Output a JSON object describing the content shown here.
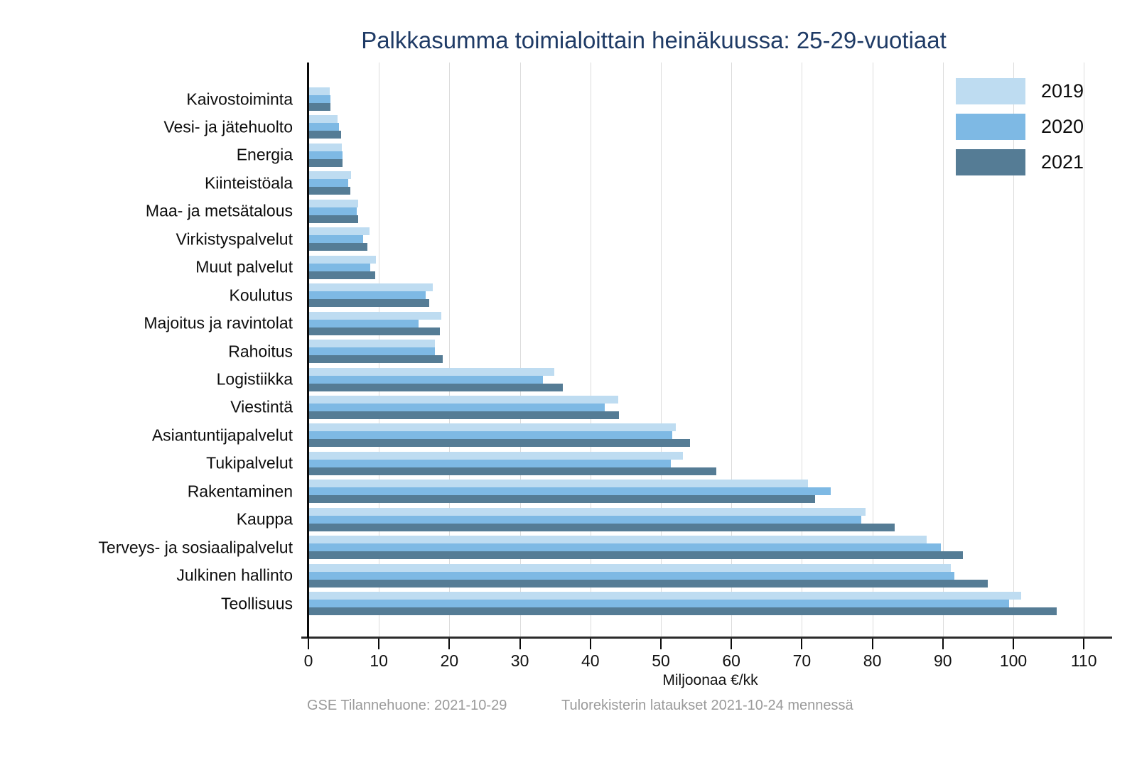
{
  "title": "Palkkasumma toimialoittain heinäkuussa: 25-29-vuotiaat",
  "footer": {
    "source_note": "GSE Tilannehuone: 2021-10-29",
    "update_note": "Tulorekisterin lataukset 2021-10-24 mennessä"
  },
  "colors": {
    "title_text": "#1F3B66",
    "axis": "#0a0a0a",
    "gridline": "#DCDCDC",
    "footer_text": "#9A9A9A",
    "series_2019": "#BEDCF1",
    "series_2020": "#7EB9E4",
    "series_2021": "#557C95"
  },
  "chart_data": {
    "type": "bar",
    "orientation": "horizontal",
    "title": "Palkkasumma toimialoittain heinäkuussa: 25-29-vuotiaat",
    "xlabel": "Miljoonaa €/kk",
    "ylabel": "",
    "xlim": [
      0,
      113
    ],
    "xticks": [
      0,
      10,
      20,
      30,
      40,
      50,
      60,
      70,
      80,
      90,
      100,
      110
    ],
    "grid": true,
    "legend_position": "top-right",
    "categories": [
      "Kaivostoiminta",
      "Vesi- ja jätehuolto",
      "Energia",
      "Kiinteistöala",
      "Maa- ja metsätalous",
      "Virkistyspalvelut",
      "Muut palvelut",
      "Koulutus",
      "Majoitus ja ravintolat",
      "Rahoitus",
      "Logistiikka",
      "Viestintä",
      "Asiantuntijapalvelut",
      "Tukipalvelut",
      "Rakentaminen",
      "Kauppa",
      "Terveys- ja sosiaalipalvelut",
      "Julkinen hallinto",
      "Teollisuus"
    ],
    "series": [
      {
        "name": "2019",
        "color": "#BEDCF1",
        "values": [
          2.9,
          4.0,
          4.6,
          5.9,
          7.0,
          8.6,
          9.5,
          17.5,
          18.7,
          17.8,
          34.8,
          43.9,
          52.0,
          53.0,
          70.8,
          78.9,
          87.6,
          91.0,
          101.0
        ]
      },
      {
        "name": "2020",
        "color": "#7EB9E4",
        "values": [
          3.0,
          4.2,
          4.7,
          5.5,
          6.8,
          7.7,
          8.7,
          16.5,
          15.5,
          17.8,
          33.2,
          41.9,
          51.5,
          51.3,
          74.0,
          78.3,
          89.6,
          91.5,
          99.3
        ]
      },
      {
        "name": "2021",
        "color": "#557C95",
        "values": [
          3.0,
          4.5,
          4.7,
          5.8,
          7.0,
          8.3,
          9.4,
          17.0,
          18.5,
          19.0,
          36.0,
          44.0,
          54.0,
          57.8,
          71.8,
          83.1,
          92.7,
          96.3,
          106.0
        ]
      }
    ]
  }
}
